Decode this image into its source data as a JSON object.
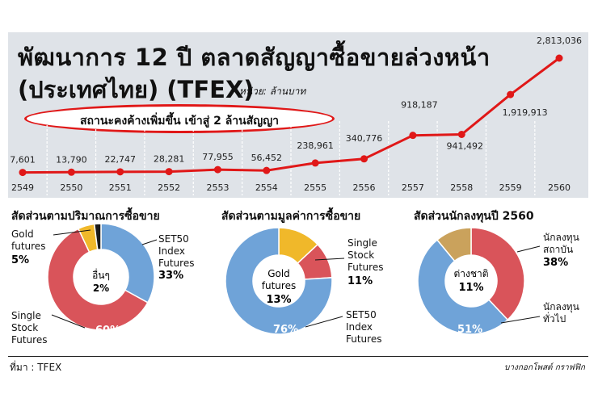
{
  "header": {
    "title_line1": "พัฒนาการ 12 ปี ตลาดสัญญาซื้อขายล่วงหน้า",
    "title_line2": "(ประเทศไทย) (TFEX)",
    "unit": "หน่วย: ล้านบาท",
    "highlight": "สถานะคงค้างเพิ่มขึ้น เข้าสู่ 2 ล้านสัญญา"
  },
  "colors": {
    "line": "#e01818",
    "blue": "#6fa3d8",
    "red": "#d9545a",
    "gold": "#f0b82a",
    "tan": "#caa25c",
    "dark": "#1a1a1a",
    "panel": "#dfe3e8"
  },
  "chart_data": [
    {
      "type": "line",
      "x": [
        "2549",
        "2550",
        "2551",
        "2552",
        "2553",
        "2554",
        "2555",
        "2556",
        "2557",
        "2558",
        "2559",
        "2560"
      ],
      "labels": [
        "7,601",
        "13,790",
        "22,747",
        "28,281",
        "77,955",
        "56,452",
        "238,961",
        "340,776",
        "918,187",
        "941,492",
        "1,919,913",
        "2,813,036"
      ],
      "values": [
        7601,
        13790,
        22747,
        28281,
        77955,
        56452,
        238961,
        340776,
        918187,
        941492,
        1919913,
        2813036
      ]
    },
    {
      "type": "pie",
      "title": "สัดส่วนตามปริมาณการซื้อขาย",
      "labels": [
        "SET50 Index Futures",
        "Single Stock Futures",
        "Gold futures",
        "อื่นๆ"
      ],
      "label_text": [
        [
          "SET50",
          "Index",
          "Futures",
          "33%"
        ],
        [
          "Single",
          "Stock",
          "Futures",
          "60%"
        ],
        [
          "Gold",
          "futures",
          "5%"
        ],
        [
          "อื่นๆ",
          "2%"
        ]
      ],
      "values": [
        33,
        60,
        5,
        2
      ]
    },
    {
      "type": "pie",
      "title": "สัดส่วนตามมูลค่าการซื้อขาย",
      "labels": [
        "SET50 Index Futures",
        "Single Stock Futures",
        "Gold futures"
      ],
      "label_text": [
        [
          "SET50",
          "Index",
          "Futures",
          "76%"
        ],
        [
          "Single",
          "Stock",
          "Futures",
          "11%"
        ],
        [
          "Gold",
          "futures",
          "13%"
        ]
      ],
      "values": [
        76,
        11,
        13
      ]
    },
    {
      "type": "pie",
      "title": "สัดส่วนนักลงทุนปี 2560",
      "labels": [
        "นักลงทุนสถาบัน",
        "นักลงทุนทั่วไป",
        "ต่างชาติ"
      ],
      "label_text": [
        [
          "นักลงทุน",
          "สถาบัน",
          "38%"
        ],
        [
          "นักลงทุน",
          "ทั่วไป",
          "51%"
        ],
        [
          "ต่างชาติ",
          "11%"
        ]
      ],
      "values": [
        38,
        51,
        11
      ]
    }
  ],
  "footer": {
    "source": "ที่มา : TFEX",
    "credit": "บางกอกโพสต์ กราฟฟิก"
  }
}
